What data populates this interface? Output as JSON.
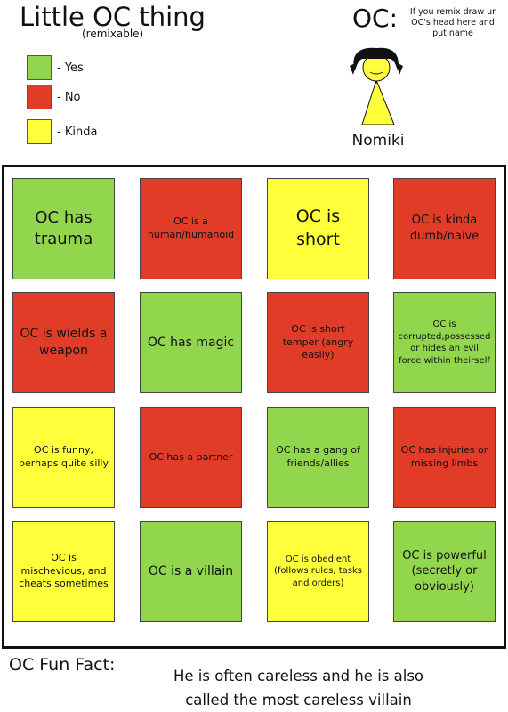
{
  "header": {
    "title": "Little OC thing",
    "subtitle": "(remixable)",
    "oc_label": "OC:",
    "remix_note": "If you remix draw ur OC's head here and put name",
    "oc_name": "Nomiki"
  },
  "legend": [
    {
      "label": "- Yes",
      "color": "#92d64e"
    },
    {
      "label": "- No",
      "color": "#e03c28"
    },
    {
      "label": "- Kinda",
      "color": "#ffff3c"
    }
  ],
  "cells": [
    {
      "text": "OC has trauma",
      "color": "#92d64e"
    },
    {
      "text": "OC is a human/humanoid",
      "color": "#e03c28"
    },
    {
      "text": "OC is short",
      "color": "#ffff3c"
    },
    {
      "text": "OC is kinda dumb/naive",
      "color": "#e03c28"
    },
    {
      "text": "OC is wields a weapon",
      "color": "#e03c28"
    },
    {
      "text": "OC has magic",
      "color": "#92d64e"
    },
    {
      "text": "OC is short temper (angry easily)",
      "color": "#e03c28"
    },
    {
      "text": "OC is corrupted,possessed or hides an evil force within theirself",
      "color": "#92d64e"
    },
    {
      "text": "OC is funny, perhaps quite silly",
      "color": "#ffff3c"
    },
    {
      "text": "OC has a partner",
      "color": "#e03c28"
    },
    {
      "text": "OC has a gang of friends/allies",
      "color": "#92d64e"
    },
    {
      "text": "OC has injuries or missing limbs",
      "color": "#e03c28"
    },
    {
      "text": "OC is mischevious, and cheats sometimes",
      "color": "#ffff3c"
    },
    {
      "text": "OC is a villain",
      "color": "#92d64e"
    },
    {
      "text": "OC is obedient (follows rules, tasks and orders)",
      "color": "#ffff3c"
    },
    {
      "text": "OC is powerful (secretly or obviously)",
      "color": "#92d64e"
    }
  ],
  "fun_fact": {
    "label": "OC Fun Fact:",
    "text": "He is often careless and he is also called the most careless villain"
  }
}
